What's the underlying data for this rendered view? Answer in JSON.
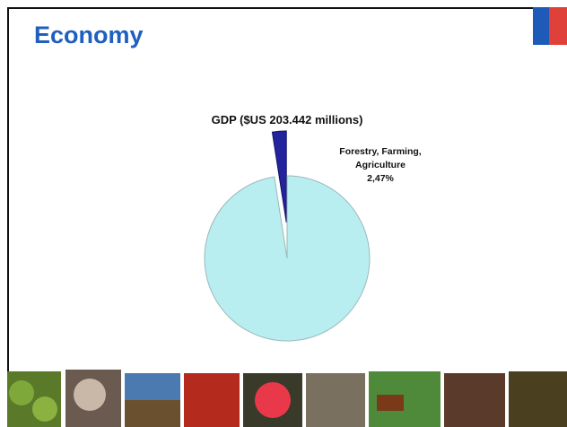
{
  "slide_title": "Economy",
  "chart_data": {
    "type": "pie",
    "title": "GDP ($US 203.442 millions)",
    "categories": [
      "Forestry, Farming, Agriculture",
      null
    ],
    "values": [
      2.47,
      97.53
    ],
    "value_labels": [
      "2,47%",
      null
    ],
    "colors": [
      "#23239e",
      "#b9eef0"
    ]
  }
}
